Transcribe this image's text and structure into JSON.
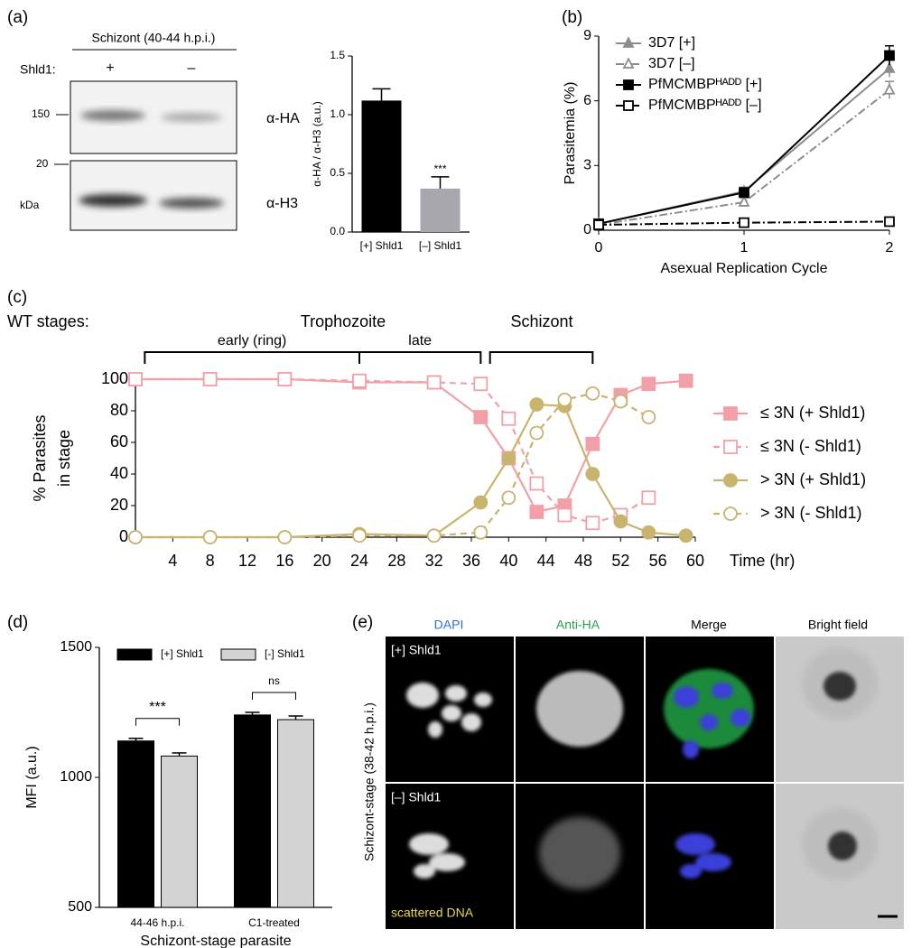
{
  "panel_labels": [
    "(a)",
    "(b)",
    "(c)",
    "(d)",
    "(e)"
  ],
  "blot": {
    "title": "Schizont (40-44 h.p.i.)",
    "treatment_label": "Shld1:",
    "lanes": [
      "+",
      "–"
    ],
    "markers": [
      "150",
      "20"
    ],
    "unit": "kDa",
    "antibodies": [
      "α-HA",
      "α-H3"
    ]
  },
  "chart_data": [
    {
      "type": "bar",
      "ylabel": "α-HA / α-H3 (a.u.)",
      "categories": [
        "[+] Shld1",
        "[–] Shld1"
      ],
      "values": [
        1.12,
        0.37
      ],
      "errors": [
        0.1,
        0.1
      ],
      "colors": [
        "#000000",
        "#a7a7ad"
      ],
      "significance": [
        null,
        "***"
      ],
      "ylim": [
        0,
        1.5
      ],
      "yticks": [
        {
          "value": 0,
          "label": "0.0"
        },
        0.5,
        {
          "value": 1,
          "label": "1.0"
        },
        1.5
      ]
    },
    {
      "type": "line",
      "xlabel": "Asexual Replication Cycle",
      "ylabel": "Parasitemia (%)",
      "x": [
        0,
        1,
        2
      ],
      "xlim": [
        0,
        2
      ],
      "xticks": [
        0,
        1,
        2
      ],
      "ylim": [
        0,
        9
      ],
      "yticks": [
        0,
        3,
        6,
        9
      ],
      "series": [
        {
          "name": "3D7 [+]",
          "color": "#8c8c8c",
          "marker": "triangle",
          "fill": true,
          "dash": "solid",
          "values": [
            0.3,
            1.8,
            7.5
          ],
          "errors": [
            0.1,
            0.2,
            0.4
          ]
        },
        {
          "name": "3D7 [–]",
          "color": "#8c8c8c",
          "marker": "triangle",
          "fill": false,
          "dash": "dashdot",
          "values": [
            0.25,
            1.3,
            6.5
          ],
          "errors": [
            0.1,
            0.2,
            0.4
          ]
        },
        {
          "name": "PfMCMBPᴴᴬᴰᴰ [+]",
          "color": "#000000",
          "marker": "square",
          "fill": true,
          "dash": "solid",
          "values": [
            0.3,
            1.75,
            8.1
          ],
          "errors": [
            0.05,
            0.1,
            0.45
          ]
        },
        {
          "name": "PfMCMBPᴴᴬᴰᴰ [–]",
          "color": "#000000",
          "marker": "square",
          "fill": false,
          "dash": "dashdot",
          "values": [
            0.25,
            0.35,
            0.4
          ],
          "errors": [
            0.05,
            0.05,
            0.05
          ]
        }
      ]
    },
    {
      "type": "line",
      "xlabel": "Time (hr)",
      "ylabel": [
        "% Parasites",
        "in stage"
      ],
      "stage_labels": [
        "WT stages:",
        "Trophozoite",
        "Schizont"
      ],
      "brackets": [
        {
          "label": "early (ring)",
          "range": [
            1,
            24
          ]
        },
        {
          "label": "late",
          "range": [
            24,
            37
          ]
        },
        {
          "range": [
            38,
            49
          ]
        }
      ],
      "x": [
        0,
        8,
        16,
        24,
        32,
        37,
        40,
        43,
        46,
        49,
        52,
        55,
        59
      ],
      "xlim": [
        0,
        60
      ],
      "xticks": [
        4,
        8,
        12,
        16,
        20,
        24,
        28,
        32,
        36,
        40,
        44,
        48,
        52,
        56,
        60
      ],
      "ylim": [
        0,
        100
      ],
      "yticks": [
        0,
        20,
        40,
        60,
        80,
        100
      ],
      "series": [
        {
          "name": "≤ 3N (+ Shld1)",
          "color": "#f2a0a7",
          "marker": "square",
          "fill": true,
          "dash": "solid",
          "values": [
            100,
            100,
            100,
            98,
            98,
            76,
            50,
            16,
            20,
            59,
            90,
            97,
            99
          ]
        },
        {
          "name": "≤ 3N (- Shld1)",
          "color": "#f2a0a7",
          "marker": "square",
          "fill": false,
          "dash": "dash",
          "values": [
            100,
            100,
            100,
            99,
            98,
            97,
            75,
            34,
            14,
            9,
            14,
            25,
            null
          ]
        },
        {
          "name": "> 3N (+ Shld1)",
          "color": "#c8b46e",
          "marker": "circle",
          "fill": true,
          "dash": "solid",
          "values": [
            0,
            0,
            0,
            2,
            1,
            22,
            50,
            84,
            83,
            40,
            10,
            3,
            1
          ]
        },
        {
          "name": "> 3N (- Shld1)",
          "color": "#c8b46e",
          "marker": "circle",
          "fill": false,
          "dash": "dash",
          "values": [
            0,
            0,
            0,
            1,
            1,
            3,
            25,
            66,
            87,
            91,
            86,
            76,
            null
          ]
        }
      ]
    },
    {
      "type": "grouped_bar",
      "xlabel": "Schizont-stage parasite",
      "ylabel": "MFI (a.u.)",
      "categories": [
        "44-46 h.p.i.",
        "C1-treated"
      ],
      "significance": [
        "***",
        "ns"
      ],
      "ylim": [
        500,
        1500
      ],
      "yticks": [
        500,
        1000,
        1500
      ],
      "series": [
        {
          "name": "[+] Shld1",
          "color": "#000000",
          "values": [
            1140,
            1240
          ],
          "errors": [
            10,
            10
          ]
        },
        {
          "name": "[-] Shld1",
          "color": "#d3d3d3",
          "values": [
            1082,
            1222
          ],
          "errors": [
            12,
            14
          ]
        }
      ]
    }
  ],
  "micrographs": {
    "columns": [
      "DAPI",
      "Anti-HA",
      "Merge",
      "Bright field"
    ],
    "rows": [
      "[+] Shld1",
      "[–] Shld1"
    ],
    "side_label": "Schizont-stage (38-42 h.p.i.)",
    "note": "scattered DNA"
  }
}
